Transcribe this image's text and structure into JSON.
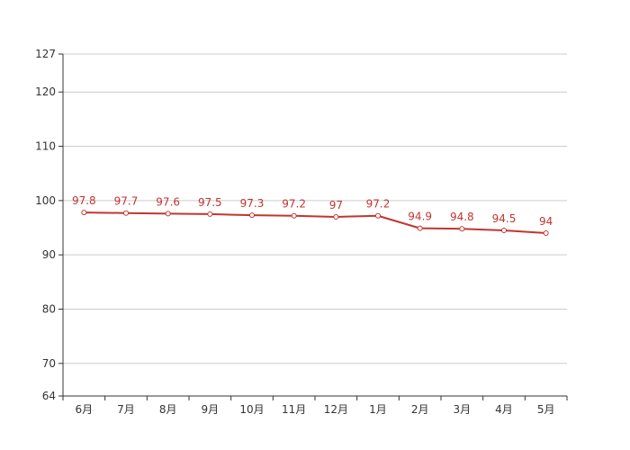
{
  "chart_data": {
    "type": "line",
    "title": "",
    "xlabel": "",
    "ylabel": "",
    "categories": [
      "6月",
      "7月",
      "8月",
      "9月",
      "10月",
      "11月",
      "12月",
      "1月",
      "2月",
      "3月",
      "4月",
      "5月"
    ],
    "series": [
      {
        "values": [
          97.8,
          97.7,
          97.6,
          97.5,
          97.3,
          97.2,
          97,
          97.2,
          94.9,
          94.8,
          94.5,
          94
        ],
        "color": "#c23531"
      }
    ],
    "ylim": [
      64,
      127
    ],
    "yticks": [
      64,
      70,
      80,
      90,
      100,
      110,
      120,
      127
    ],
    "grid": true,
    "legend": "none"
  }
}
